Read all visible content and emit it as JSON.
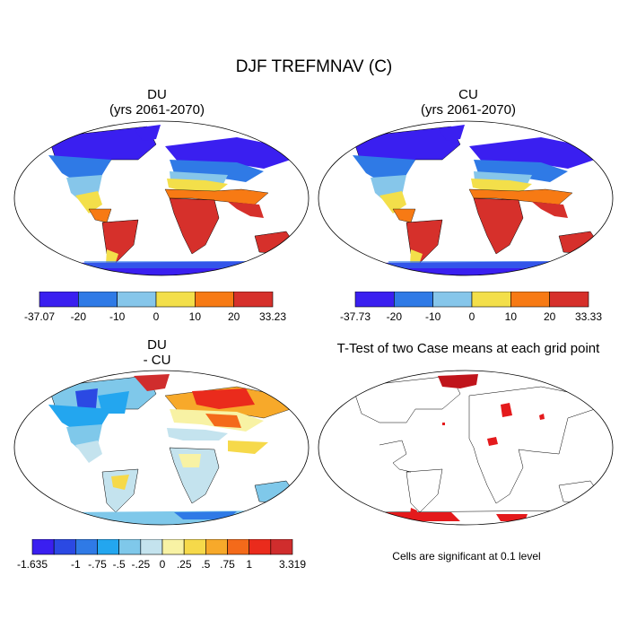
{
  "figure_title": "DJF TREFMNAV (C)",
  "panels": [
    {
      "title_line1": "DU",
      "title_line2": "(yrs 2061-2070)",
      "colorbar": {
        "colors": [
          "#3a1ff0",
          "#2f7ae6",
          "#86c6ea",
          "#f3df4a",
          "#f77a14",
          "#d6302b"
        ],
        "labels": [
          "-37.07",
          "-20",
          "-10",
          "0",
          "10",
          "20",
          "33.23"
        ]
      }
    },
    {
      "title_line1": "CU",
      "title_line2": "(yrs 2061-2070)",
      "colorbar": {
        "colors": [
          "#3a1ff0",
          "#2f7ae6",
          "#86c6ea",
          "#f3df4a",
          "#f77a14",
          "#d6302b"
        ],
        "labels": [
          "-37.73",
          "-20",
          "-10",
          "0",
          "10",
          "20",
          "33.33"
        ]
      }
    },
    {
      "title_line1": "DU",
      "title_line2": "- CU",
      "colorbar": {
        "colors": [
          "#3a1ff0",
          "#2b49e3",
          "#2f7ae6",
          "#23a6ef",
          "#7fc8ea",
          "#c4e3ee",
          "#f8f2a4",
          "#f6d94a",
          "#f7a92a",
          "#f46a1a",
          "#ea2b1c",
          "#d02d2d"
        ],
        "labels": [
          "-1.635",
          "-1",
          "-.75",
          "-.5",
          "-.25",
          "0",
          ".25",
          ".5",
          ".75",
          "1",
          "3.319"
        ]
      }
    },
    {
      "title_line1": "T-Test of two Case means at each grid point",
      "title_line2": ""
    }
  ],
  "footnote": "Cells are significant at 0.1 level"
}
